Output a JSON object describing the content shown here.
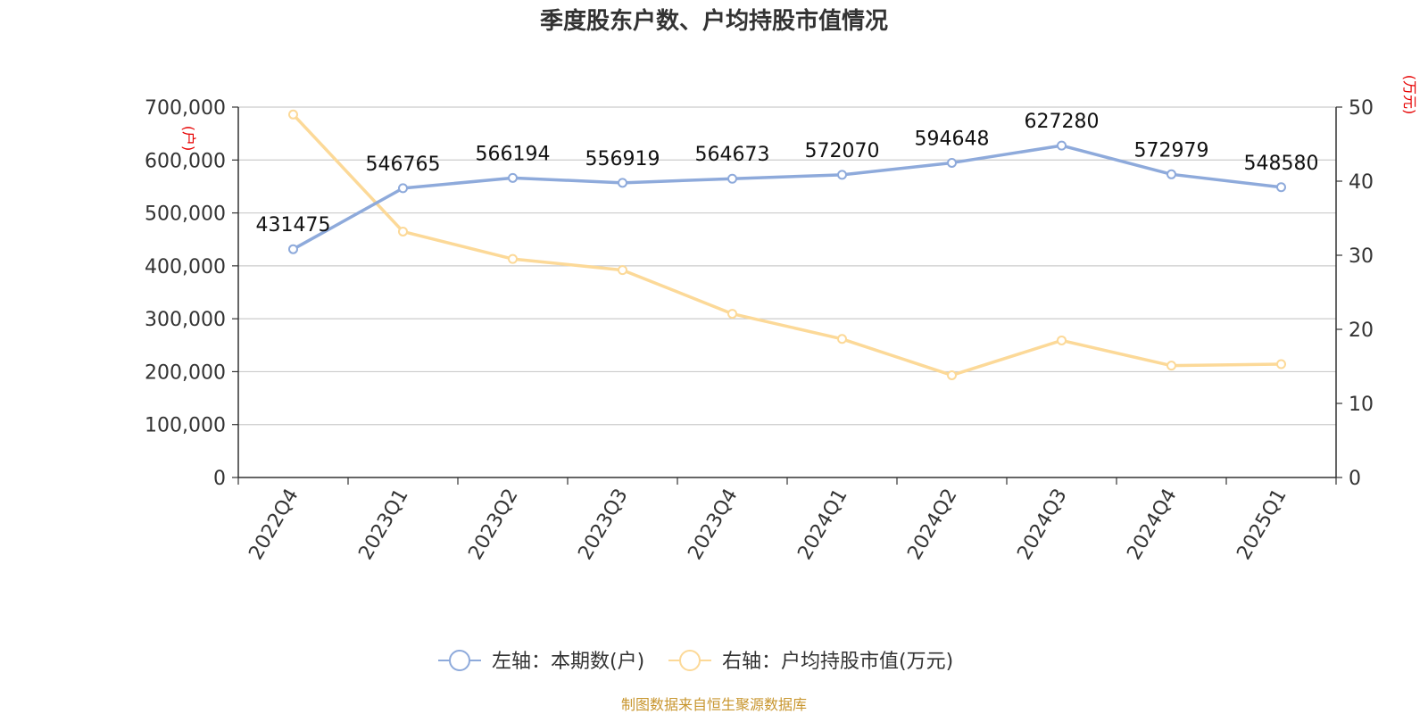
{
  "chart_data": {
    "type": "line",
    "title": "季度股东户数、户均持股市值情况",
    "categories": [
      "2022Q4",
      "2023Q1",
      "2023Q2",
      "2023Q3",
      "2023Q4",
      "2024Q1",
      "2024Q2",
      "2024Q3",
      "2024Q4",
      "2025Q1"
    ],
    "series": [
      {
        "name": "左轴：本期数(户)",
        "axis": "left",
        "color": "#8eaadb",
        "values": [
          431475,
          546765,
          566194,
          556919,
          564673,
          572070,
          594648,
          627280,
          572979,
          548580
        ],
        "labels": [
          "431475",
          "546765",
          "566194",
          "556919",
          "564673",
          "572070",
          "594648",
          "627280",
          "572979",
          "548580"
        ]
      },
      {
        "name": "右轴：户均持股市值(万元)",
        "axis": "right",
        "color": "#fcd998",
        "values": [
          49.0,
          33.2,
          29.5,
          28.0,
          22.1,
          18.7,
          13.8,
          18.5,
          15.1,
          15.3
        ]
      }
    ],
    "y_left": {
      "unit": "(户)",
      "range": [
        0,
        700000
      ],
      "ticks": [
        "0",
        "100,000",
        "200,000",
        "300,000",
        "400,000",
        "500,000",
        "600,000",
        "700,000"
      ]
    },
    "y_right": {
      "unit": "(万元)",
      "range": [
        0,
        50
      ],
      "ticks": [
        "0",
        "10",
        "20",
        "30",
        "40",
        "50"
      ]
    },
    "grid": true,
    "legend_position": "bottom-center",
    "source": "制图数据来自恒生聚源数据库"
  }
}
